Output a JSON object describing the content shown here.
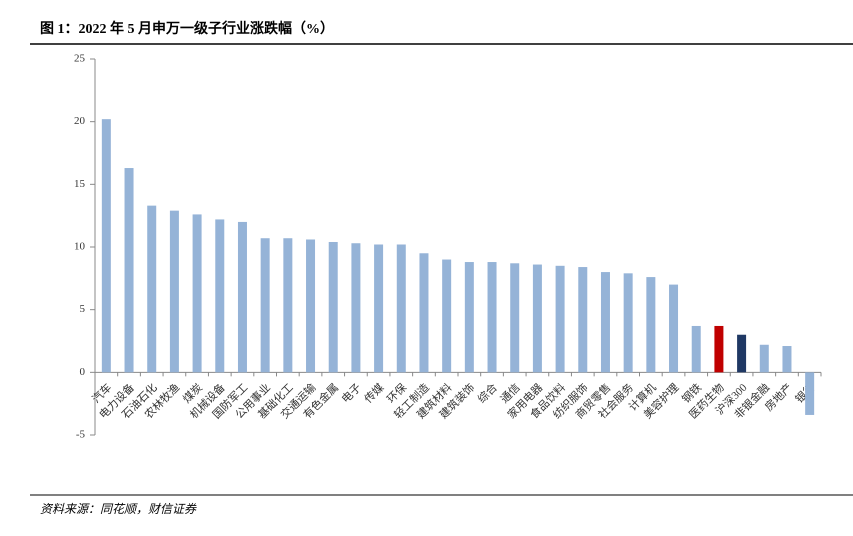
{
  "chart_data": {
    "type": "bar",
    "title": "图 1：2022 年 5 月申万一级子行业涨跌幅（%）",
    "source": "资料来源：同花顺，财信证券",
    "categories": [
      "汽车",
      "电力设备",
      "石油石化",
      "农林牧渔",
      "煤炭",
      "机械设备",
      "国防军工",
      "公用事业",
      "基础化工",
      "交通运输",
      "有色金属",
      "电子",
      "传媒",
      "环保",
      "轻工制造",
      "建筑材料",
      "建筑装饰",
      "综合",
      "通信",
      "家用电器",
      "食品饮料",
      "纺织服饰",
      "商贸零售",
      "社会服务",
      "计算机",
      "美容护理",
      "钢铁",
      "医药生物",
      "沪深300",
      "非银金融",
      "房地产",
      "银行"
    ],
    "values": [
      20.2,
      16.3,
      13.3,
      12.9,
      12.6,
      12.2,
      12.0,
      10.7,
      10.7,
      10.6,
      10.4,
      10.3,
      10.2,
      10.2,
      9.5,
      9.0,
      8.8,
      8.8,
      8.7,
      8.6,
      8.5,
      8.4,
      8.0,
      7.9,
      7.6,
      7.0,
      3.7,
      3.7,
      3.0,
      2.2,
      2.1,
      -3.4
    ],
    "color": "#95b3d7",
    "highlight_colors": {
      "27": "#c00000",
      "28": "#1f3864"
    },
    "ylim": [
      -5,
      25
    ],
    "yticks": [
      -5,
      0,
      5,
      10,
      15,
      20,
      25
    ],
    "grid": false
  }
}
